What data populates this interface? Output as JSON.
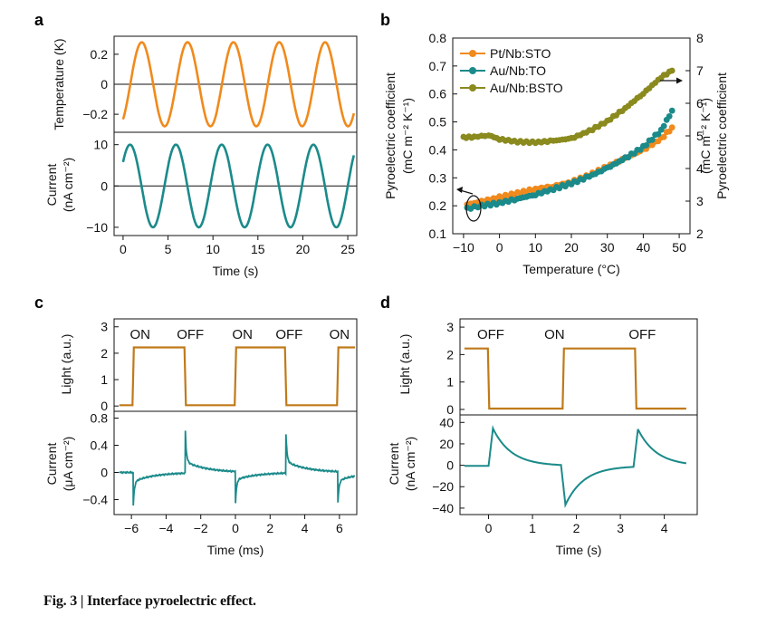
{
  "caption": "Fig. 3 | Interface pyroelectric effect.",
  "colors": {
    "orange": "#f08a1c",
    "teal": "#1b8a8a",
    "olive": "#8a8a1e",
    "brown": "#c07a1a",
    "axis": "#111111"
  },
  "panels": {
    "a": {
      "label": "a"
    },
    "b": {
      "label": "b"
    },
    "c": {
      "label": "c"
    },
    "d": {
      "label": "d"
    }
  },
  "chart_data": [
    {
      "id": "a-top",
      "type": "line",
      "ylabel": "Temperature (K)",
      "yticks": [
        0.2,
        0,
        -0.2
      ],
      "ytick_labels": [
        "0.2",
        "0",
        "−0.2"
      ],
      "ylim": [
        -0.32,
        0.32
      ],
      "xlim": [
        -1,
        26
      ],
      "series": [
        {
          "name": "Temperature",
          "color": "#f08a1c",
          "amplitude": 0.28,
          "period": 5.1,
          "phase_x": 0.8,
          "x_range": [
            0,
            25.7
          ]
        }
      ]
    },
    {
      "id": "a-bottom",
      "type": "line",
      "ylabel": "Current",
      "ylabel2": "(nA cm⁻²)",
      "yticks": [
        10,
        0,
        -10
      ],
      "ytick_labels": [
        "10",
        "0",
        "−10"
      ],
      "ylim": [
        -12,
        13
      ],
      "xlim": [
        -1,
        26
      ],
      "xticks": [
        0,
        5,
        10,
        15,
        20,
        25
      ],
      "xtick_labels": [
        "0",
        "5",
        "10",
        "15",
        "20",
        "25"
      ],
      "xlabel": "Time (s)",
      "series": [
        {
          "name": "Current",
          "color": "#1b8a8a",
          "amplitude": 10,
          "period": 5.1,
          "phase_x": -0.5,
          "x_range": [
            0,
            25.7
          ]
        }
      ]
    },
    {
      "id": "b",
      "type": "scatter",
      "xlabel": "Temperature (°C)",
      "ylabel": "Pyroelectric coefficient",
      "ylabel_sub": "(mC m⁻² K⁻¹)",
      "y2label": "Pyroelectric coefficient",
      "y2label_sub": "(mC m⁻² K⁻¹)",
      "xlim": [
        -13,
        53
      ],
      "ylim": [
        0.1,
        0.8
      ],
      "y2lim": [
        2,
        8
      ],
      "xticks": [
        -10,
        0,
        10,
        20,
        30,
        40,
        50
      ],
      "xtick_labels": [
        "−10",
        "0",
        "10",
        "20",
        "30",
        "40",
        "50"
      ],
      "yticks": [
        0.1,
        0.2,
        0.3,
        0.4,
        0.5,
        0.6,
        0.7,
        0.8
      ],
      "ytick_labels": [
        "0.1",
        "0.2",
        "0.3",
        "0.4",
        "0.5",
        "0.6",
        "0.7",
        "0.8"
      ],
      "y2ticks": [
        2,
        3,
        4,
        5,
        6,
        7,
        8
      ],
      "y2tick_labels": [
        "2",
        "3",
        "4",
        "5",
        "6",
        "7",
        "8"
      ],
      "series": [
        {
          "name": "Pt/Nb:STO",
          "color": "#f08a1c",
          "axis": "left",
          "points": [
            [
              -9,
              0.205
            ],
            [
              -5,
              0.215
            ],
            [
              0,
              0.23
            ],
            [
              5,
              0.245
            ],
            [
              10,
              0.26
            ],
            [
              15,
              0.27
            ],
            [
              20,
              0.285
            ],
            [
              25,
              0.31
            ],
            [
              30,
              0.34
            ],
            [
              35,
              0.37
            ],
            [
              40,
              0.4
            ],
            [
              45,
              0.44
            ],
            [
              48,
              0.48
            ]
          ]
        },
        {
          "name": "Au/Nb:TO",
          "color": "#1b8a8a",
          "axis": "left",
          "points": [
            [
              -9,
              0.19
            ],
            [
              -5,
              0.2
            ],
            [
              0,
              0.21
            ],
            [
              5,
              0.225
            ],
            [
              10,
              0.24
            ],
            [
              15,
              0.26
            ],
            [
              20,
              0.28
            ],
            [
              25,
              0.305
            ],
            [
              30,
              0.335
            ],
            [
              35,
              0.37
            ],
            [
              40,
              0.41
            ],
            [
              45,
              0.47
            ],
            [
              48,
              0.54
            ]
          ]
        },
        {
          "name": "Au/Nb:BSTO",
          "color": "#8a8a1e",
          "axis": "right",
          "points": [
            [
              -10,
              4.95
            ],
            [
              -7,
              4.97
            ],
            [
              -3,
              5.02
            ],
            [
              0,
              4.9
            ],
            [
              5,
              4.82
            ],
            [
              10,
              4.8
            ],
            [
              15,
              4.85
            ],
            [
              20,
              4.92
            ],
            [
              25,
              5.15
            ],
            [
              30,
              5.45
            ],
            [
              35,
              5.85
            ],
            [
              40,
              6.3
            ],
            [
              45,
              6.8
            ],
            [
              48,
              7.0
            ]
          ]
        }
      ]
    },
    {
      "id": "c-top",
      "type": "line",
      "ylabel": "Light (a.u.)",
      "yticks": [
        0,
        1,
        2,
        3
      ],
      "ytick_labels": [
        "0",
        "1",
        "2",
        "3"
      ],
      "ylim": [
        -0.2,
        3.3
      ],
      "xlim": [
        -7,
        7
      ],
      "annotations": [
        "ON",
        "OFF",
        "ON",
        "OFF",
        "ON"
      ],
      "annotation_x": [
        -5.5,
        -2.6,
        0.4,
        3.1,
        6.0
      ],
      "series": [
        {
          "name": "Light",
          "color": "#c07a1a",
          "low": 0.03,
          "high": 2.22,
          "edges": [
            [
              -5.9,
              "up"
            ],
            [
              -2.9,
              "down"
            ],
            [
              0.0,
              "up"
            ],
            [
              2.9,
              "down"
            ],
            [
              5.9,
              "up"
            ]
          ],
          "x_range": [
            -6.7,
            6.9
          ]
        }
      ]
    },
    {
      "id": "c-bottom",
      "type": "line",
      "ylabel": "Current",
      "ylabel2": "(μA cm⁻²)",
      "yticks": [
        0.8,
        0.4,
        0,
        -0.4
      ],
      "ytick_labels": [
        "0.8",
        "0.4",
        "0",
        "−0.4"
      ],
      "ylim": [
        -0.62,
        0.9
      ],
      "xlim": [
        -7,
        7
      ],
      "xticks": [
        -6,
        -4,
        -2,
        0,
        2,
        4,
        6
      ],
      "xtick_labels": [
        "−6",
        "−4",
        "−2",
        "0",
        "2",
        "4",
        "6"
      ],
      "xlabel": "Time (ms)",
      "series": [
        {
          "name": "Current",
          "color": "#1b8a8a",
          "peaks": [
            [
              -5.9,
              -0.55
            ],
            [
              -2.9,
              0.7
            ],
            [
              0.0,
              -0.5
            ],
            [
              2.9,
              0.7
            ],
            [
              5.9,
              -0.55
            ]
          ],
          "x_range": [
            -6.7,
            6.9
          ]
        }
      ]
    },
    {
      "id": "d-top",
      "type": "line",
      "ylabel": "Light (a.u.)",
      "yticks": [
        0,
        1,
        2,
        3
      ],
      "ytick_labels": [
        "0",
        "1",
        "2",
        "3"
      ],
      "ylim": [
        -0.2,
        3.3
      ],
      "xlim": [
        -0.65,
        4.75
      ],
      "annotations": [
        "OFF",
        "ON",
        "OFF"
      ],
      "annotation_x": [
        0.05,
        1.5,
        3.5
      ],
      "series": [
        {
          "name": "Light",
          "color": "#c07a1a",
          "low": 0.03,
          "high": 2.22,
          "edges": [
            [
              0.0,
              "down"
            ],
            [
              1.7,
              "up"
            ],
            [
              3.35,
              "down"
            ]
          ],
          "x_range": [
            -0.55,
            4.5
          ]
        }
      ]
    },
    {
      "id": "d-bottom",
      "type": "line",
      "ylabel": "Current",
      "ylabel2": "(nA cm⁻²)",
      "yticks": [
        40,
        20,
        0,
        -20,
        -40
      ],
      "ytick_labels": [
        "40",
        "20",
        "0",
        "−20",
        "−40"
      ],
      "ylim": [
        -46,
        47
      ],
      "xlim": [
        -0.65,
        4.75
      ],
      "xticks": [
        0,
        1,
        2,
        3,
        4
      ],
      "xtick_labels": [
        "0",
        "1",
        "2",
        "3",
        "4"
      ],
      "xlabel": "Time (s)",
      "series": [
        {
          "name": "Current",
          "color": "#1b8a8a",
          "peaks": [
            [
              0.1,
              35
            ],
            [
              1.75,
              -37
            ],
            [
              3.4,
              35
            ]
          ],
          "x_range": [
            -0.55,
            4.5
          ]
        }
      ]
    }
  ]
}
